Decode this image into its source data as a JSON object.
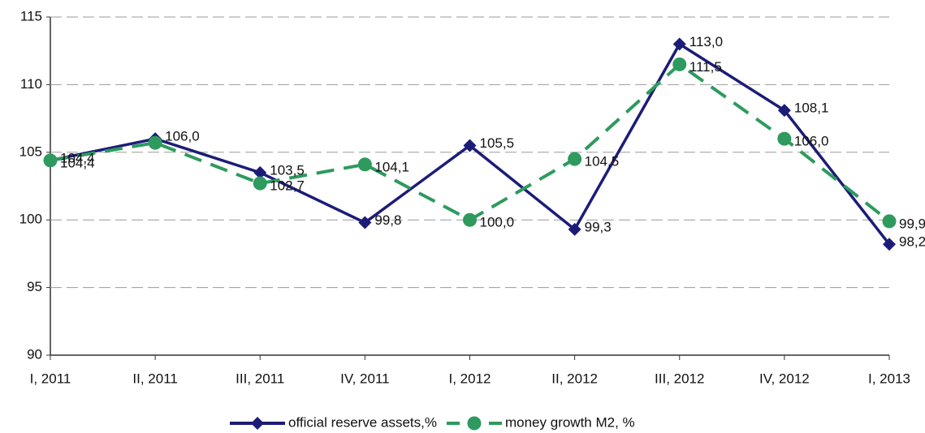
{
  "chart_data": {
    "type": "line",
    "categories": [
      "I, 2011",
      "II, 2011",
      "III, 2011",
      "IV, 2011",
      "I, 2012",
      "II, 2012",
      "III, 2012",
      "IV, 2012",
      "I, 2013"
    ],
    "series": [
      {
        "name": "official reserve assets,%",
        "color": "#1c1c78",
        "marker": "diamond",
        "dash": false,
        "values": [
          104.4,
          106.0,
          103.5,
          99.8,
          105.5,
          99.3,
          113.0,
          108.1,
          98.2
        ],
        "value_labels": [
          "104,4",
          "106,0",
          "103,5",
          "99,8",
          "105,5",
          "99,3",
          "113,0",
          "108,1",
          "98,2"
        ]
      },
      {
        "name": "money growth M2, %",
        "color": "#2e9a5e",
        "marker": "circle",
        "dash": true,
        "values": [
          104.4,
          105.7,
          102.7,
          104.1,
          100.0,
          104.5,
          111.5,
          106.0,
          99.9
        ],
        "value_labels": [
          "104,4",
          null,
          "102,7",
          "104,1",
          "100,0",
          "104,5",
          "111,5",
          "106,0",
          "99,9"
        ]
      }
    ],
    "ylim": [
      90,
      115
    ],
    "yticks": [
      90,
      95,
      100,
      105,
      110,
      115
    ],
    "grid": true,
    "legend": "bottom"
  }
}
